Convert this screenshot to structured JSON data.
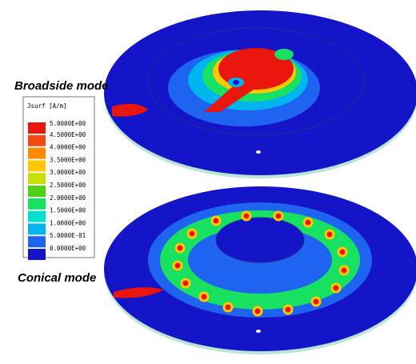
{
  "labels": {
    "top": "Broadside mode",
    "bottom": "Conical mode"
  },
  "legend": {
    "title": "Jsurf [A/m]",
    "levels": [
      {
        "value": 5,
        "label": "5.0000E+00",
        "color": "#e8160c"
      },
      {
        "value": 4.5,
        "label": "4.5000E+00",
        "color": "#f24a14"
      },
      {
        "value": 4,
        "label": "4.0000E+00",
        "color": "#ff8a00"
      },
      {
        "value": 3.5,
        "label": "3.5000E+00",
        "color": "#ffc800"
      },
      {
        "value": 3,
        "label": "3.0000E+00",
        "color": "#c8e000"
      },
      {
        "value": 2.5,
        "label": "2.5000E+00",
        "color": "#50d018"
      },
      {
        "value": 2,
        "label": "2.0000E+00",
        "color": "#18e060"
      },
      {
        "value": 1.5,
        "label": "1.5000E+00",
        "color": "#00e0d0"
      },
      {
        "value": 1,
        "label": "1.0000E+00",
        "color": "#00b4f0"
      },
      {
        "value": 0.5,
        "label": "5.0000E-01",
        "color": "#1e64f0"
      },
      {
        "value": 0,
        "label": "0.0000E+00",
        "color": "#1414c8"
      }
    ]
  }
}
